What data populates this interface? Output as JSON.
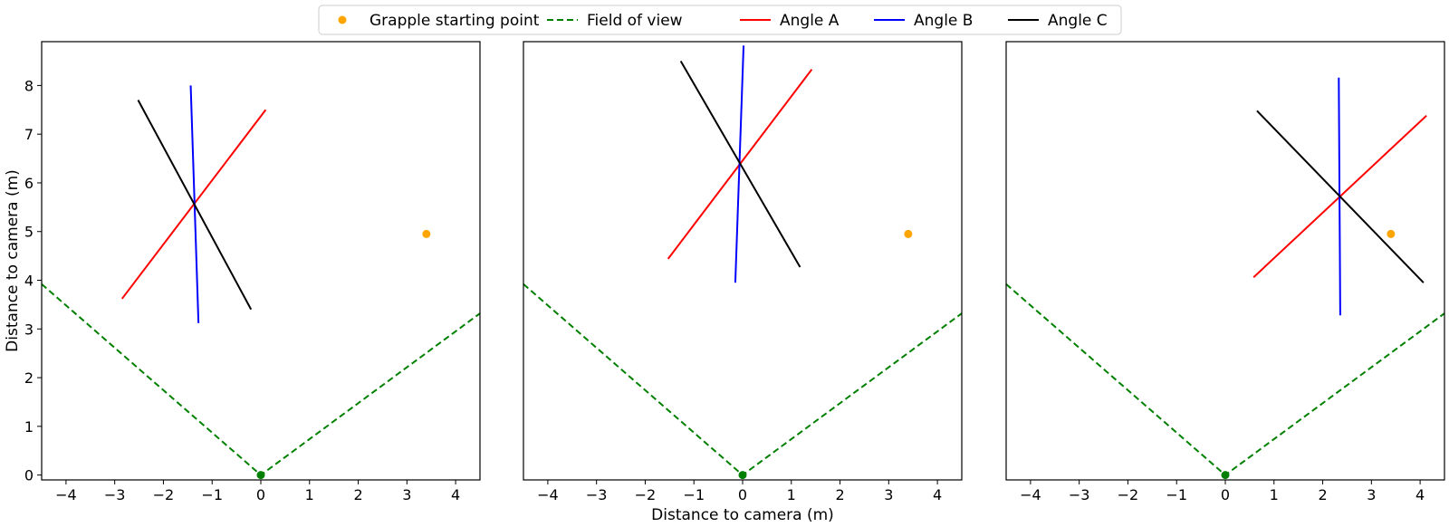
{
  "chart_data": {
    "type": "line",
    "xlabel": "Distance to camera (m)",
    "ylabel": "Distance to camera (m)",
    "xlim": [
      -4.5,
      4.5
    ],
    "ylim": [
      -0.1,
      8.9
    ],
    "xticks": [
      -4,
      -3,
      -2,
      -1,
      0,
      1,
      2,
      3,
      4
    ],
    "yticks": [
      0,
      1,
      2,
      3,
      4,
      5,
      6,
      7,
      8
    ],
    "legend_position": "top-center",
    "legend": [
      {
        "key": "grapple",
        "label": "Grapple starting point",
        "style": "marker"
      },
      {
        "key": "fov",
        "label": "Field of view",
        "style": "dashed"
      },
      {
        "key": "angle_a",
        "label": "Angle A",
        "style": "solid"
      },
      {
        "key": "angle_b",
        "label": "Angle B",
        "style": "solid"
      },
      {
        "key": "angle_c",
        "label": "Angle C",
        "style": "solid"
      }
    ],
    "colors": {
      "grapple": "#ffa500",
      "fov": "#008000",
      "camera": "#008000",
      "angle_a": "#ff0000",
      "angle_b": "#0000ff",
      "angle_c": "#000000"
    },
    "panels": [
      {
        "camera": [
          0,
          0
        ],
        "grapple": [
          3.4,
          4.95
        ],
        "field_of_view": [
          [
            -4.5,
            3.92
          ],
          [
            0,
            0
          ],
          [
            4.5,
            3.32
          ]
        ],
        "angle_a": [
          [
            -2.85,
            3.62
          ],
          [
            0.1,
            7.5
          ]
        ],
        "angle_b": [
          [
            -1.44,
            8.0
          ],
          [
            -1.28,
            3.12
          ]
        ],
        "angle_c": [
          [
            -2.52,
            7.7
          ],
          [
            -0.2,
            3.4
          ]
        ]
      },
      {
        "camera": [
          0,
          0
        ],
        "grapple": [
          3.4,
          4.95
        ],
        "field_of_view": [
          [
            -4.5,
            3.92
          ],
          [
            0,
            0
          ],
          [
            4.5,
            3.32
          ]
        ],
        "angle_a": [
          [
            -1.53,
            4.44
          ],
          [
            1.42,
            8.33
          ]
        ],
        "angle_b": [
          [
            0.02,
            8.82
          ],
          [
            -0.15,
            3.95
          ]
        ],
        "angle_c": [
          [
            -1.27,
            8.5
          ],
          [
            1.18,
            4.27
          ]
        ]
      },
      {
        "camera": [
          0,
          0
        ],
        "grapple": [
          3.4,
          4.95
        ],
        "field_of_view": [
          [
            -4.5,
            3.92
          ],
          [
            0,
            0
          ],
          [
            4.5,
            3.32
          ]
        ],
        "angle_a": [
          [
            0.58,
            4.06
          ],
          [
            4.13,
            7.38
          ]
        ],
        "angle_b": [
          [
            2.33,
            8.16
          ],
          [
            2.36,
            3.28
          ]
        ],
        "angle_c": [
          [
            0.65,
            7.48
          ],
          [
            4.07,
            3.95
          ]
        ]
      }
    ]
  }
}
